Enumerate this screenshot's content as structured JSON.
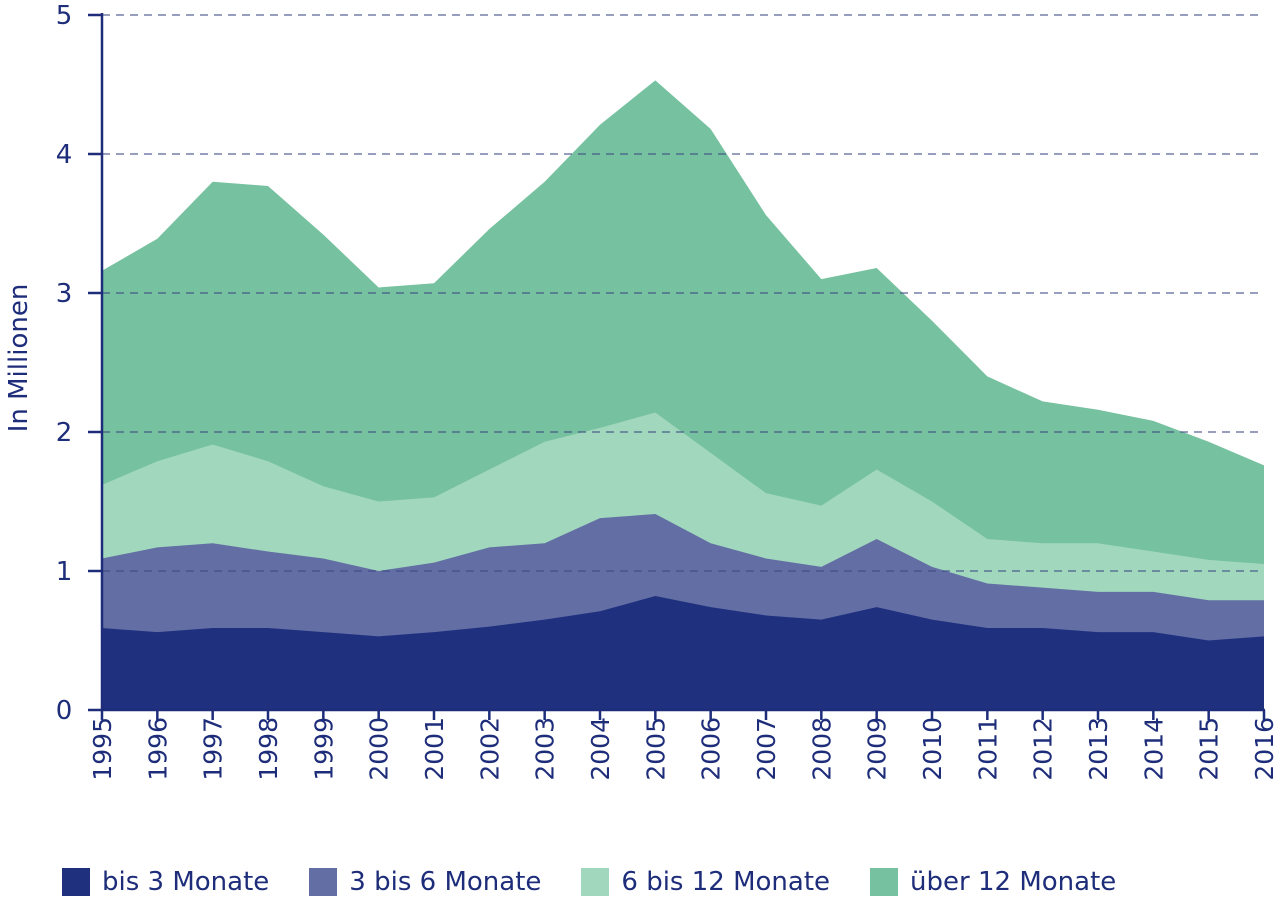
{
  "chart_data": {
    "type": "area",
    "stacked": true,
    "ylabel": "In Millionen",
    "xlabel": "",
    "ylim": [
      0,
      5
    ],
    "yticks": [
      0,
      1,
      2,
      3,
      4,
      5
    ],
    "grid": "horizontal dashed",
    "legend_position": "bottom",
    "x": [
      "1995",
      "1996",
      "1997",
      "1998",
      "1999",
      "2000",
      "2001",
      "2002",
      "2003",
      "2004",
      "2005",
      "2006",
      "2007",
      "2008",
      "2009",
      "2010",
      "2011",
      "2012",
      "2013",
      "2014",
      "2015",
      "2016"
    ],
    "series": [
      {
        "name": "bis 3 Monate",
        "color": "#1f307f",
        "values": [
          0.59,
          0.56,
          0.59,
          0.59,
          0.56,
          0.53,
          0.56,
          0.6,
          0.65,
          0.71,
          0.82,
          0.74,
          0.68,
          0.65,
          0.74,
          0.65,
          0.59,
          0.59,
          0.56,
          0.56,
          0.5,
          0.53
        ]
      },
      {
        "name": "3 bis 6 Monate",
        "color": "#636ea4",
        "values": [
          0.5,
          0.61,
          0.61,
          0.55,
          0.53,
          0.47,
          0.5,
          0.57,
          0.55,
          0.67,
          0.59,
          0.46,
          0.41,
          0.38,
          0.49,
          0.38,
          0.32,
          0.29,
          0.29,
          0.29,
          0.29,
          0.26
        ]
      },
      {
        "name": "6 bis 12 Monate",
        "color": "#a0d7bd",
        "values": [
          0.53,
          0.62,
          0.71,
          0.65,
          0.52,
          0.5,
          0.47,
          0.56,
          0.73,
          0.65,
          0.73,
          0.65,
          0.47,
          0.44,
          0.5,
          0.47,
          0.32,
          0.32,
          0.35,
          0.29,
          0.29,
          0.26
        ]
      },
      {
        "name": "über 12 Monate",
        "color": "#76c19f",
        "values": [
          1.54,
          1.6,
          1.89,
          1.98,
          1.81,
          1.54,
          1.54,
          1.73,
          1.87,
          2.18,
          2.39,
          2.33,
          2.0,
          1.63,
          1.45,
          1.3,
          1.17,
          1.02,
          0.96,
          0.94,
          0.85,
          0.71
        ]
      }
    ]
  }
}
